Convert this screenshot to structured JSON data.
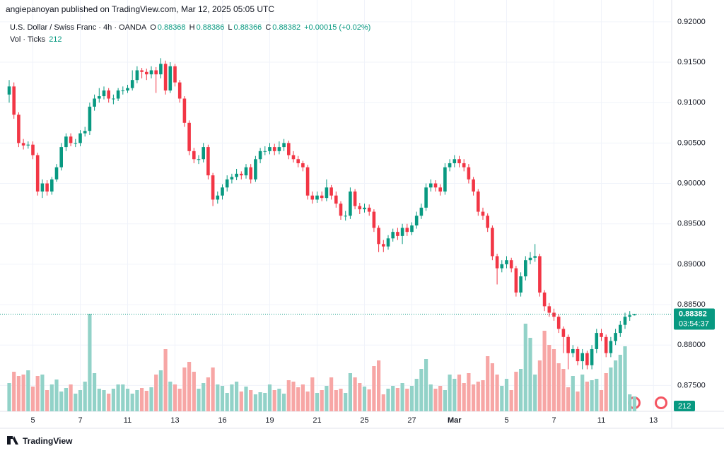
{
  "header": {
    "byline": "angiepanoyan published on TradingView.com, Mar 12, 2025 05:05 UTC",
    "brand": "TradingView"
  },
  "chart_data": {
    "type": "candlestick",
    "title": "U.S. Dollar / Swiss Franc · 4h · OANDA",
    "legend_labels": {
      "open": "O",
      "high": "H",
      "low": "L",
      "close": "C"
    },
    "change_label": "+0.00015 (+0.02%)",
    "volume_title": "Vol · Ticks",
    "countdown": "03:54:37",
    "up_color": "#089981",
    "down_color": "#f23645",
    "volume_up_color": "#92d2c8",
    "volume_down_color": "#f7a6a5",
    "grid": true,
    "ylim": [
      0.8718,
      0.9227
    ],
    "yticks": [
      {
        "value": 0.875,
        "label": "0.87500"
      },
      {
        "value": 0.88,
        "label": "0.88000"
      },
      {
        "value": 0.885,
        "label": "0.88500"
      },
      {
        "value": 0.89,
        "label": "0.89000"
      },
      {
        "value": 0.895,
        "label": "0.89500"
      },
      {
        "value": 0.9,
        "label": "0.90000"
      },
      {
        "value": 0.905,
        "label": "0.90500"
      },
      {
        "value": 0.91,
        "label": "0.91000"
      },
      {
        "value": 0.915,
        "label": "0.91500"
      },
      {
        "value": 0.92,
        "label": "0.92000"
      }
    ],
    "categories": [
      null,
      null,
      null,
      null,
      null,
      "5",
      null,
      null,
      null,
      null,
      null,
      null,
      null,
      null,
      null,
      "7",
      null,
      null,
      null,
      null,
      null,
      null,
      null,
      null,
      null,
      "11",
      null,
      null,
      null,
      null,
      null,
      null,
      null,
      null,
      null,
      "13",
      null,
      null,
      null,
      null,
      null,
      null,
      null,
      null,
      null,
      "16",
      null,
      null,
      null,
      null,
      null,
      null,
      null,
      null,
      null,
      "19",
      null,
      null,
      null,
      null,
      null,
      null,
      null,
      null,
      null,
      "21",
      null,
      null,
      null,
      null,
      null,
      null,
      null,
      null,
      null,
      "25",
      null,
      null,
      null,
      null,
      null,
      null,
      null,
      null,
      null,
      "27",
      null,
      null,
      null,
      null,
      null,
      null,
      null,
      null,
      "Mar",
      null,
      null,
      null,
      null,
      null,
      null,
      null,
      null,
      null,
      null,
      "5",
      null,
      null,
      null,
      null,
      null,
      null,
      null,
      null,
      null,
      "7",
      null,
      null,
      null,
      null,
      null,
      null,
      null,
      null,
      null,
      "11",
      null,
      null,
      null,
      null,
      null,
      null,
      null,
      null,
      null,
      null,
      "13"
    ],
    "open": [
      0.911,
      0.912,
      0.9085,
      0.905,
      0.9047,
      0.9048,
      0.9035,
      0.899,
      0.9,
      0.899,
      0.9005,
      0.902,
      0.9045,
      0.9058,
      0.905,
      0.905,
      0.9062,
      0.9065,
      0.9095,
      0.9105,
      0.9108,
      0.9115,
      0.9105,
      0.9105,
      0.9115,
      0.9115,
      0.9118,
      0.9128,
      0.914,
      0.9138,
      0.9135,
      0.914,
      0.9135,
      0.9148,
      0.9115,
      0.9145,
      0.9125,
      0.9105,
      0.9075,
      0.904,
      0.903,
      0.903,
      0.9045,
      0.901,
      0.898,
      0.8985,
      0.8995,
      0.9005,
      0.9008,
      0.9012,
      0.901,
      0.902,
      0.9005,
      0.903,
      0.904,
      0.904,
      0.9045,
      0.904,
      0.9045,
      0.905,
      0.9035,
      0.903,
      0.9025,
      0.902,
      0.8985,
      0.898,
      0.8985,
      0.8982,
      0.8995,
      0.8985,
      0.8975,
      0.896,
      0.896,
      0.899,
      0.8972,
      0.8968,
      0.897,
      0.8965,
      0.8945,
      0.8925,
      0.8922,
      0.8932,
      0.894,
      0.8935,
      0.8945,
      0.894,
      0.8948,
      0.896,
      0.897,
      0.8995,
      0.9,
      0.8995,
      0.899,
      0.902,
      0.9025,
      0.903,
      0.9025,
      0.902,
      0.9005,
      0.899,
      0.8965,
      0.896,
      0.8945,
      0.891,
      0.8895,
      0.89,
      0.8905,
      0.8895,
      0.8865,
      0.8885,
      0.8905,
      0.8908,
      0.891,
      0.8865,
      0.8848,
      0.884,
      0.8835,
      0.882,
      0.881,
      0.879,
      0.8795,
      0.878,
      0.879,
      0.8775,
      0.8795,
      0.8815,
      0.881,
      0.879,
      0.8805,
      0.8815,
      0.8825,
      0.8835,
      0.88368,
      null,
      null,
      null,
      null
    ],
    "high": [
      0.9128,
      0.9125,
      0.9088,
      0.9055,
      0.9052,
      0.9052,
      0.9038,
      0.9005,
      0.9004,
      0.9008,
      0.9024,
      0.905,
      0.9062,
      0.9062,
      0.9055,
      0.9066,
      0.907,
      0.91,
      0.911,
      0.9118,
      0.912,
      0.9118,
      0.911,
      0.9118,
      0.912,
      0.9122,
      0.914,
      0.9145,
      0.9143,
      0.9142,
      0.9145,
      0.9144,
      0.9155,
      0.9152,
      0.915,
      0.9148,
      0.9128,
      0.9108,
      0.9078,
      0.9044,
      0.9035,
      0.905,
      0.9048,
      0.9013,
      0.899,
      0.8999,
      0.901,
      0.9012,
      0.9018,
      0.9015,
      0.9024,
      0.9024,
      0.9034,
      0.9044,
      0.9046,
      0.905,
      0.9049,
      0.9052,
      0.9055,
      0.9053,
      0.904,
      0.9034,
      0.9028,
      0.9023,
      0.899,
      0.899,
      0.899,
      0.9005,
      0.8998,
      0.899,
      0.8978,
      0.8966,
      0.8995,
      0.8993,
      0.8976,
      0.8975,
      0.8974,
      0.8968,
      0.8948,
      0.893,
      0.8936,
      0.8944,
      0.8945,
      0.895,
      0.895,
      0.8952,
      0.8965,
      0.8975,
      0.9,
      0.9005,
      0.9004,
      0.8999,
      0.9025,
      0.903,
      0.9035,
      0.9034,
      0.903,
      0.9024,
      0.9008,
      0.8993,
      0.897,
      0.8963,
      0.8948,
      0.8913,
      0.8905,
      0.891,
      0.8908,
      0.8898,
      0.889,
      0.891,
      0.8915,
      0.8925,
      0.8913,
      0.8868,
      0.8852,
      0.8845,
      0.8838,
      0.8823,
      0.8813,
      0.88,
      0.8798,
      0.8795,
      0.8793,
      0.88,
      0.882,
      0.882,
      0.8813,
      0.881,
      0.882,
      0.883,
      0.884,
      0.8842,
      0.88386,
      null,
      null,
      null,
      null
    ],
    "low": [
      0.91,
      0.908,
      0.9045,
      0.9042,
      0.9043,
      0.903,
      0.8985,
      0.8982,
      0.8985,
      0.8986,
      0.9002,
      0.9016,
      0.904,
      0.9046,
      0.9045,
      0.9046,
      0.9058,
      0.906,
      0.909,
      0.91,
      0.9104,
      0.91,
      0.9098,
      0.9102,
      0.911,
      0.9112,
      0.9115,
      0.9124,
      0.913,
      0.9128,
      0.913,
      0.9112,
      0.913,
      0.911,
      0.9112,
      0.912,
      0.91,
      0.907,
      0.9035,
      0.9025,
      0.9024,
      0.9026,
      0.9005,
      0.8972,
      0.8975,
      0.898,
      0.899,
      0.9,
      0.9004,
      0.9005,
      0.9006,
      0.9,
      0.9002,
      0.9025,
      0.9035,
      0.9036,
      0.9035,
      0.9036,
      0.904,
      0.903,
      0.9026,
      0.902,
      0.9015,
      0.898,
      0.8975,
      0.8976,
      0.8978,
      0.8978,
      0.898,
      0.897,
      0.8955,
      0.8954,
      0.8956,
      0.8968,
      0.8962,
      0.8964,
      0.896,
      0.894,
      0.8915,
      0.8915,
      0.8918,
      0.8928,
      0.893,
      0.8925,
      0.8935,
      0.8936,
      0.8944,
      0.8956,
      0.8966,
      0.899,
      0.899,
      0.8985,
      0.8986,
      0.9015,
      0.902,
      0.902,
      0.9015,
      0.9,
      0.8985,
      0.896,
      0.8955,
      0.894,
      0.8905,
      0.8875,
      0.889,
      0.8895,
      0.889,
      0.886,
      0.886,
      0.888,
      0.89,
      0.8903,
      0.886,
      0.8842,
      0.8835,
      0.883,
      0.8815,
      0.879,
      0.877,
      0.8785,
      0.8775,
      0.877,
      0.877,
      0.877,
      0.879,
      0.8805,
      0.8785,
      0.8785,
      0.88,
      0.881,
      0.882,
      0.883,
      0.88366,
      null,
      null,
      null,
      null
    ],
    "close": [
      0.912,
      0.9085,
      0.905,
      0.9047,
      0.9048,
      0.9035,
      0.899,
      0.9,
      0.899,
      0.9005,
      0.902,
      0.9045,
      0.9058,
      0.905,
      0.905,
      0.9062,
      0.9065,
      0.9095,
      0.9105,
      0.9108,
      0.9115,
      0.9105,
      0.9105,
      0.9115,
      0.9115,
      0.9118,
      0.9128,
      0.914,
      0.9138,
      0.9135,
      0.914,
      0.9135,
      0.9148,
      0.9115,
      0.9145,
      0.9125,
      0.9105,
      0.9075,
      0.904,
      0.903,
      0.903,
      0.9045,
      0.901,
      0.898,
      0.8985,
      0.8995,
      0.9005,
      0.9008,
      0.9012,
      0.901,
      0.902,
      0.9005,
      0.903,
      0.904,
      0.904,
      0.9045,
      0.904,
      0.9045,
      0.905,
      0.9035,
      0.903,
      0.9025,
      0.902,
      0.8985,
      0.898,
      0.8985,
      0.8982,
      0.8995,
      0.8985,
      0.8975,
      0.896,
      0.896,
      0.899,
      0.8972,
      0.8968,
      0.897,
      0.8965,
      0.8945,
      0.8925,
      0.8922,
      0.8932,
      0.894,
      0.8935,
      0.8945,
      0.894,
      0.8948,
      0.896,
      0.897,
      0.8995,
      0.9,
      0.8995,
      0.899,
      0.902,
      0.9025,
      0.903,
      0.9025,
      0.902,
      0.9005,
      0.899,
      0.8965,
      0.896,
      0.8945,
      0.891,
      0.8895,
      0.89,
      0.8905,
      0.8895,
      0.8865,
      0.8885,
      0.8905,
      0.8908,
      0.891,
      0.8865,
      0.8848,
      0.884,
      0.8835,
      0.882,
      0.881,
      0.879,
      0.8795,
      0.878,
      0.879,
      0.8775,
      0.8795,
      0.8815,
      0.881,
      0.879,
      0.8805,
      0.8815,
      0.8825,
      0.8835,
      0.88368,
      0.88382,
      null,
      null,
      null,
      null
    ],
    "volume": [
      400,
      560,
      500,
      520,
      580,
      350,
      500,
      520,
      300,
      380,
      450,
      280,
      330,
      380,
      250,
      300,
      420,
      1380,
      540,
      320,
      300,
      250,
      320,
      380,
      380,
      320,
      250,
      300,
      330,
      290,
      340,
      520,
      580,
      880,
      420,
      380,
      320,
      620,
      700,
      560,
      320,
      400,
      480,
      620,
      380,
      360,
      260,
      380,
      420,
      280,
      350,
      300,
      240,
      270,
      260,
      380,
      300,
      320,
      250,
      440,
      420,
      340,
      380,
      280,
      480,
      260,
      300,
      360,
      480,
      300,
      320,
      260,
      540,
      480,
      400,
      350,
      310,
      640,
      720,
      240,
      320,
      360,
      330,
      400,
      320,
      360,
      460,
      600,
      740,
      380,
      320,
      360,
      300,
      520,
      460,
      520,
      400,
      540,
      380,
      420,
      440,
      780,
      680,
      520,
      360,
      460,
      300,
      560,
      600,
      1240,
      1040,
      520,
      720,
      1140,
      940,
      880,
      680,
      600,
      340,
      500,
      280,
      520,
      420,
      440,
      460,
      300,
      540,
      620,
      720,
      800,
      920,
      240,
      212,
      null,
      null,
      null,
      null
    ]
  }
}
